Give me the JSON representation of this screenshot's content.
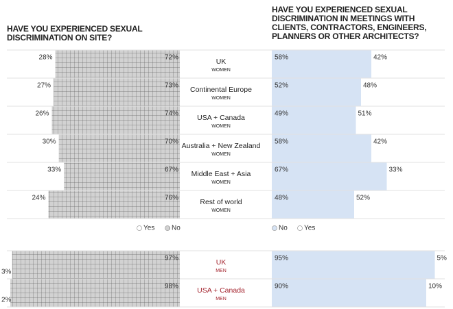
{
  "chart_data": [
    {
      "type": "bar",
      "title": "HAVE YOU EXPERIENCED SEXUAL\nDISCRIMINATION ON SITE?",
      "categories": [
        "UK",
        "Continental Europe",
        "USA + Canada",
        "Australia + New Zealand",
        "Middle East + Asia",
        "Rest of world",
        "UK",
        "USA + Canada"
      ],
      "subcategories": [
        "WOMEN",
        "WOMEN",
        "WOMEN",
        "WOMEN",
        "WOMEN",
        "WOMEN",
        "MEN",
        "MEN"
      ],
      "category_colors": [
        "#222222",
        "#222222",
        "#222222",
        "#222222",
        "#222222",
        "#222222",
        "#a3222c",
        "#a3222c"
      ],
      "xlim": [
        0,
        100
      ],
      "series": [
        {
          "name": "Yes",
          "color": "#ffffff",
          "values": [
            28,
            27,
            26,
            30,
            33,
            24,
            3,
            2
          ],
          "value_labels": [
            "28%",
            "27%",
            "26%",
            "30%",
            "33%",
            "24%",
            "3%",
            "2%"
          ]
        },
        {
          "name": "No",
          "color": "hatch",
          "values": [
            72,
            73,
            74,
            70,
            67,
            76,
            97,
            98
          ],
          "value_labels": [
            "72%",
            "73%",
            "74%",
            "70%",
            "67%",
            "76%",
            "97%",
            "98%"
          ]
        }
      ]
    },
    {
      "type": "bar",
      "title": "HAVE YOU EXPERIENCED SEXUAL\nDISCRIMINATION IN MEETINGS WITH\nCLIENTS, CONTRACTORS, ENGINEERS,\nPLANNERS OR OTHER ARCHITECTS?",
      "xlim": [
        0,
        100
      ],
      "series": [
        {
          "name": "No",
          "color": "#d6e3f4",
          "values": [
            58,
            52,
            49,
            58,
            67,
            48,
            95,
            90
          ],
          "value_labels": [
            "58%",
            "52%",
            "49%",
            "58%",
            "67%",
            "48%",
            "95%",
            "90%"
          ]
        },
        {
          "name": "Yes",
          "color": "#ffffff",
          "values": [
            42,
            48,
            51,
            42,
            33,
            52,
            5,
            10
          ],
          "value_labels": [
            "42%",
            "48%",
            "51%",
            "42%",
            "33%",
            "52%",
            "5%",
            "10%"
          ]
        }
      ]
    }
  ]
}
